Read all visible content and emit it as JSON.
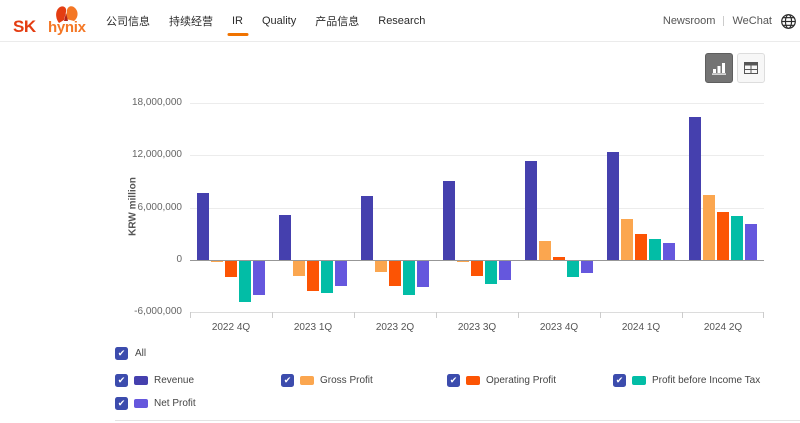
{
  "header": {
    "logo": {
      "sk": "SK",
      "hynix": "hynix"
    },
    "nav": [
      {
        "label": "公司信息",
        "active": false
      },
      {
        "label": "持续经营",
        "active": false
      },
      {
        "label": "IR",
        "active": true
      },
      {
        "label": "Quality",
        "active": false
      },
      {
        "label": "产品信息",
        "active": false
      },
      {
        "label": "Research",
        "active": false
      }
    ],
    "links": {
      "newsroom": "Newsroom",
      "wechat": "WeChat"
    },
    "icons": {
      "globe": "globe-icon"
    }
  },
  "view_toggle": {
    "chart_button_icon": "bar-chart-icon",
    "table_button_icon": "table-icon",
    "active": "chart"
  },
  "chart_data": {
    "type": "bar",
    "title": "",
    "xlabel": "",
    "ylabel": "KRW million",
    "ylim": [
      -6000000,
      18000000
    ],
    "grid": true,
    "legend_position": "bottom",
    "categories": [
      "2022 4Q",
      "2023 1Q",
      "2023 2Q",
      "2023 3Q",
      "2023 4Q",
      "2024 1Q",
      "2024 2Q"
    ],
    "yticks": [
      {
        "value": 18000000,
        "label": "18,000,000"
      },
      {
        "value": 12000000,
        "label": "12,000,000"
      },
      {
        "value": 6000000,
        "label": "6,000,000"
      },
      {
        "value": 0,
        "label": "0"
      },
      {
        "value": -6000000,
        "label": "-6,000,000"
      }
    ],
    "series": [
      {
        "name": "Revenue",
        "color": "#4540ae",
        "values": [
          7700000,
          5100000,
          7300000,
          9100000,
          11300000,
          12400000,
          16400000
        ]
      },
      {
        "name": "Gross Profit",
        "color": "#fba64f",
        "values": [
          -200000,
          -1700000,
          -1300000,
          -150000,
          2200000,
          4700000,
          7400000
        ]
      },
      {
        "name": "Operating Profit",
        "color": "#fc5404",
        "values": [
          -1900000,
          -3500000,
          -2900000,
          -1800000,
          350000,
          2900000,
          5500000
        ]
      },
      {
        "name": "Profit before Income Tax",
        "color": "#02bda6",
        "values": [
          -4700000,
          -3700000,
          -3900000,
          -2700000,
          -1900000,
          2400000,
          5000000
        ]
      },
      {
        "name": "Net Profit",
        "color": "#6557dd",
        "values": [
          -3900000,
          -2900000,
          -3000000,
          -2200000,
          -1400000,
          1900000,
          4100000
        ]
      }
    ]
  },
  "legend": {
    "all_label": "All",
    "items": [
      {
        "label": "Revenue",
        "color": "#4540ae",
        "checked": true
      },
      {
        "label": "Gross Profit",
        "color": "#fba64f",
        "checked": true
      },
      {
        "label": "Operating Profit",
        "color": "#fc5404",
        "checked": true
      },
      {
        "label": "Profit before Income Tax",
        "color": "#02bda6",
        "checked": true
      },
      {
        "label": "Net Profit",
        "color": "#6557dd",
        "checked": true
      }
    ]
  }
}
